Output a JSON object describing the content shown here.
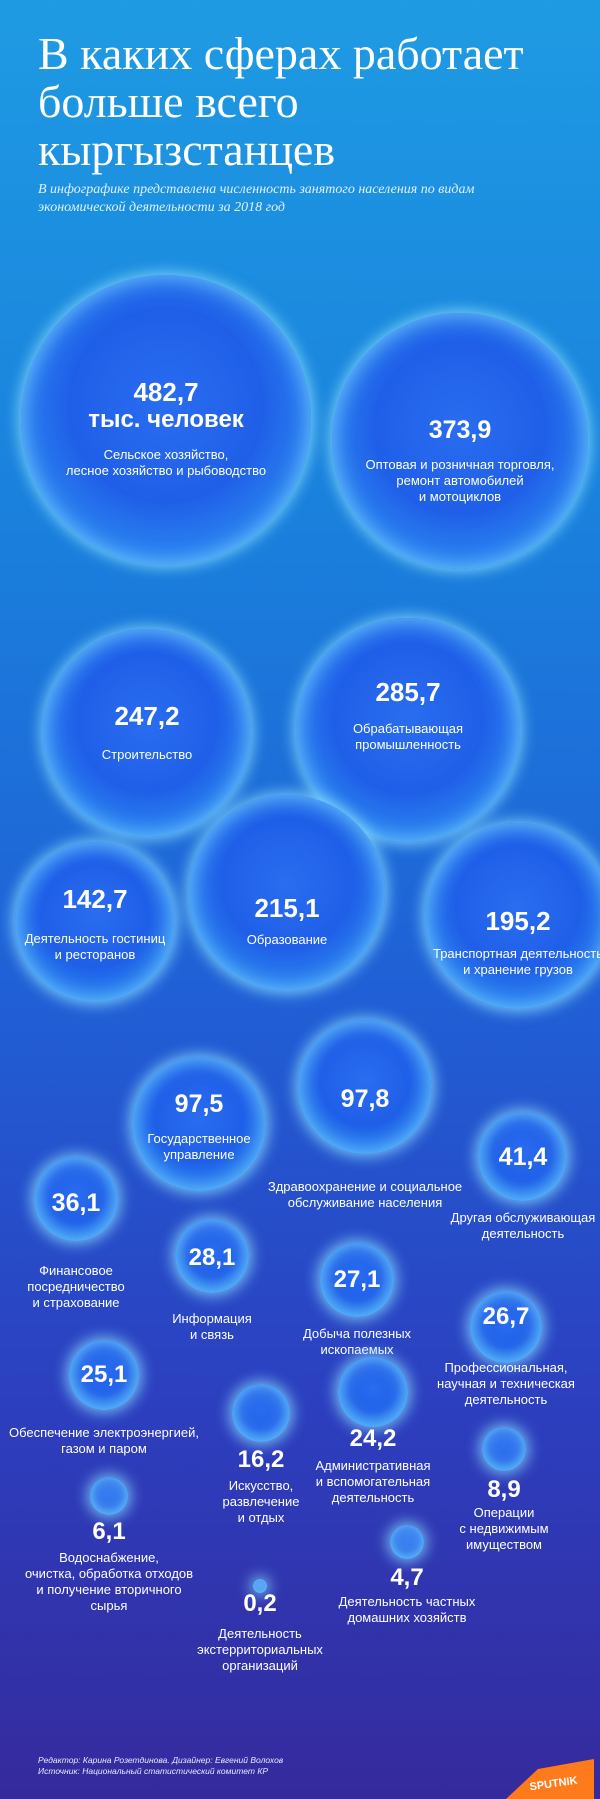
{
  "page": {
    "title": "В каких сферах работает больше всего кыргызстанцев",
    "subtitle": "В инфографике представлена численность занятого населения по видам экономической деятельности за 2018 год",
    "unit_label": "тыс. человек",
    "editor_line": "Редактор: Карина Розетдинова. Дизайнер: Евгений Волохов",
    "source_line": "Источник: Национальный статистический комитет КР",
    "logo_text": "SPUTNIK"
  },
  "chart_data": {
    "type": "bubble",
    "title": "В каких сферах работает больше всего кыргызстанцев",
    "unit": "тыс. человек",
    "categories": [
      "Сельское хозяйство,\nлесное хозяйство и рыбоводство",
      "Оптовая и розничная торговля,\nремонт автомобилей\nи мотоциклов",
      "Строительство",
      "Обрабатывающая\nпромышленность",
      "Деятельность гостиниц\nи ресторанов",
      "Образование",
      "Транспортная деятельность\nи хранение грузов",
      "Государственное\nуправление",
      "Здравоохранение и социальное\nобслуживание населения",
      "Другая обслуживающая\nдеятельность",
      "Финансовое\nпосредничество\nи страхование",
      "Информация\nи связь",
      "Добыча полезных\nископаемых",
      "Профессиональная,\nнаучная и техническая\nдеятельность",
      "Обеспечение электроэнергией,\nгазом и паром",
      "Искусство,\nразвлечение\nи отдых",
      "Административная\nи вспомогательная\nдеятельность",
      "Операции\nс недвижимым\nимуществом",
      "Водоснабжение,\nочистка, обработка отходов\nи получение вторичного\nсырья",
      "Деятельность частных\nдомашних хозяйств",
      "Деятельность\nэкстерриториальных\nорганизаций"
    ],
    "value_labels": [
      "482,7",
      "373,9",
      "247,2",
      "285,7",
      "142,7",
      "215,1",
      "195,2",
      "97,5",
      "97,8",
      "41,4",
      "36,1",
      "28,1",
      "27,1",
      "26,7",
      "25,1",
      "16,2",
      "24,2",
      "8,9",
      "6,1",
      "4,7",
      "0,2"
    ],
    "values": [
      482.7,
      373.9,
      247.2,
      285.7,
      142.7,
      215.1,
      195.2,
      97.5,
      97.8,
      41.4,
      36.1,
      28.1,
      27.1,
      26.7,
      25.1,
      16.2,
      24.2,
      8.9,
      6.1,
      4.7,
      0.2
    ]
  }
}
